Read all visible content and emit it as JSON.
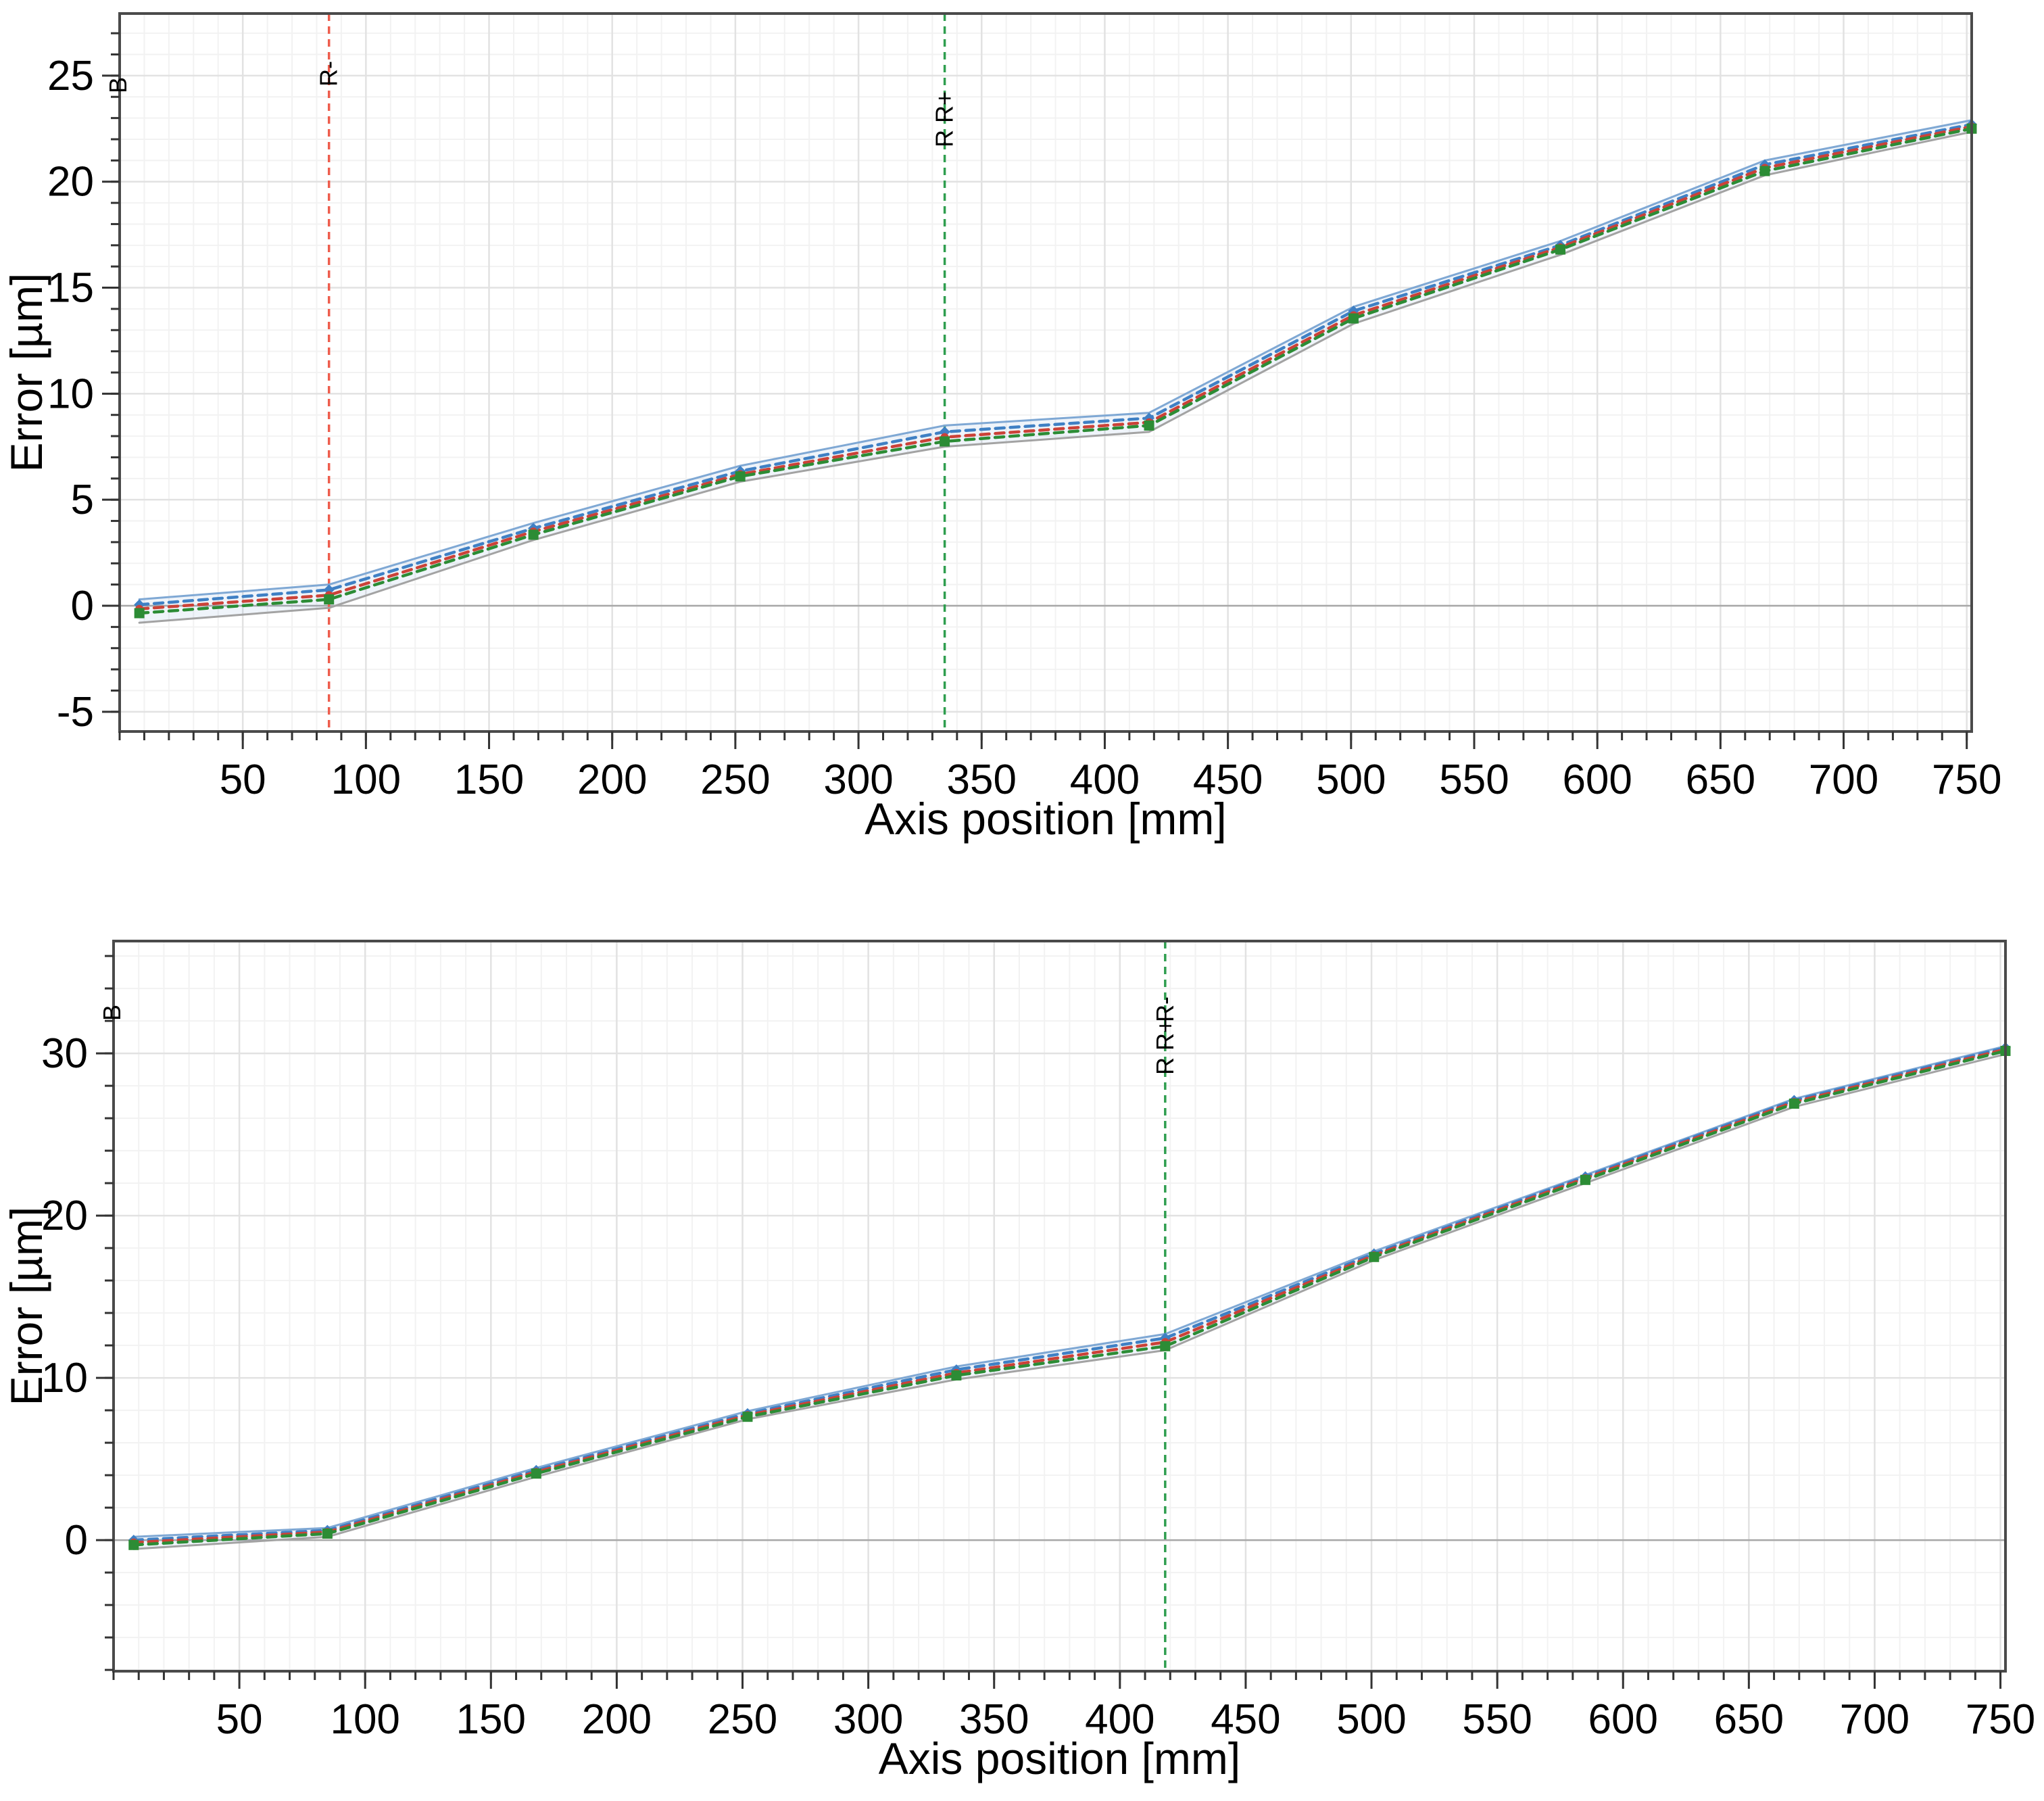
{
  "page": {
    "background": "#ffffff"
  },
  "chart_data": [
    {
      "type": "line",
      "title": "",
      "xlabel": "Axis position [mm]",
      "ylabel": "Error [µm]",
      "xlim": [
        0,
        752
      ],
      "ylim": [
        -5.93,
        27.93
      ],
      "x_major_ticks": [
        50,
        100,
        150,
        200,
        250,
        300,
        350,
        400,
        450,
        500,
        550,
        600,
        650,
        700,
        750
      ],
      "x_minor_step": 10,
      "y_major_ticks": [
        -5,
        0,
        5,
        10,
        15,
        20,
        25
      ],
      "y_minor_step": 1,
      "grid": "on",
      "legend": "none",
      "corner_label": "B",
      "vlines": [
        {
          "x": 85,
          "color": "#ee5d4d",
          "labels": [
            {
              "text": "R-",
              "dy": 108
            }
          ]
        },
        {
          "x": 335,
          "color": "#2f9e4f",
          "labels": [
            {
              "text": "R R+",
              "dy": 198
            }
          ]
        }
      ],
      "x": [
        8,
        85,
        168,
        252,
        335,
        418,
        501,
        585,
        668,
        752
      ],
      "series": [
        {
          "name": "envelope-upper",
          "color": "#7fa8d4",
          "width": 3,
          "dash": null,
          "marker": null,
          "values": [
            0.3,
            1.0,
            3.9,
            6.6,
            8.5,
            9.1,
            14.1,
            17.2,
            21.0,
            22.9
          ]
        },
        {
          "name": "mean-up",
          "color": "#3f80c4",
          "width": 4.5,
          "dash": "13 9",
          "marker": "diamond",
          "values": [
            0.05,
            0.75,
            3.65,
            6.35,
            8.2,
            8.85,
            13.9,
            17.0,
            20.8,
            22.7
          ]
        },
        {
          "name": "mean-bidirectional",
          "color": "#cb4238",
          "width": 4.5,
          "dash": "13 9",
          "marker": "circle",
          "values": [
            -0.15,
            0.5,
            3.5,
            6.2,
            7.95,
            8.65,
            13.7,
            16.9,
            20.65,
            22.6
          ]
        },
        {
          "name": "mean-down",
          "color": "#2c8c35",
          "width": 4.5,
          "dash": "13 9",
          "marker": "square",
          "values": [
            -0.35,
            0.3,
            3.35,
            6.1,
            7.75,
            8.5,
            13.55,
            16.8,
            20.5,
            22.5
          ]
        },
        {
          "name": "envelope-lower",
          "color": "#a3a3a3",
          "width": 3,
          "dash": null,
          "marker": null,
          "values": [
            -0.8,
            -0.1,
            3.1,
            5.85,
            7.5,
            8.2,
            13.3,
            16.55,
            20.3,
            22.35
          ]
        }
      ],
      "band": {
        "fill": "rgba(125,165,215,0.12)"
      }
    },
    {
      "type": "line",
      "title": "",
      "xlabel": "Axis position [mm]",
      "ylabel": "Error [µm]",
      "xlim": [
        0,
        752
      ],
      "ylim": [
        -8.08,
        36.92
      ],
      "x_major_ticks": [
        50,
        100,
        150,
        200,
        250,
        300,
        350,
        400,
        450,
        500,
        550,
        600,
        650,
        700,
        750
      ],
      "x_minor_step": 10,
      "y_major_ticks": [
        0,
        10,
        20,
        30
      ],
      "y_minor_step": 2,
      "grid": "on",
      "legend": "none",
      "corner_label": "B",
      "vlines": [
        {
          "x": 418,
          "color": "#2f9e4f",
          "labels": [
            {
              "text": "R R+",
              "dy": 198
            },
            {
              "text": "R-",
              "dy": 120
            }
          ]
        }
      ],
      "x": [
        8,
        85,
        168,
        252,
        335,
        418,
        501,
        585,
        668,
        752
      ],
      "series": [
        {
          "name": "envelope-upper",
          "color": "#7fa8d4",
          "width": 3,
          "dash": null,
          "marker": null,
          "values": [
            0.2,
            0.75,
            4.45,
            7.95,
            10.7,
            12.7,
            17.8,
            22.5,
            27.2,
            30.45
          ]
        },
        {
          "name": "mean-up",
          "color": "#3f80c4",
          "width": 4.5,
          "dash": "13 9",
          "marker": "diamond",
          "values": [
            0.0,
            0.6,
            4.3,
            7.8,
            10.5,
            12.45,
            17.65,
            22.4,
            27.1,
            30.35
          ]
        },
        {
          "name": "mean-bidirectional",
          "color": "#cb4238",
          "width": 4.5,
          "dash": "13 9",
          "marker": "circle",
          "values": [
            -0.15,
            0.5,
            4.2,
            7.7,
            10.3,
            12.2,
            17.55,
            22.3,
            27.0,
            30.25
          ]
        },
        {
          "name": "mean-down",
          "color": "#2c8c35",
          "width": 4.5,
          "dash": "13 9",
          "marker": "square",
          "values": [
            -0.3,
            0.4,
            4.1,
            7.6,
            10.15,
            11.95,
            17.45,
            22.2,
            26.9,
            30.15
          ]
        },
        {
          "name": "envelope-lower",
          "color": "#a3a3a3",
          "width": 3,
          "dash": null,
          "marker": null,
          "values": [
            -0.55,
            0.2,
            3.9,
            7.45,
            9.9,
            11.7,
            17.25,
            22.0,
            26.7,
            29.95
          ]
        }
      ],
      "band": {
        "fill": "rgba(125,165,215,0.12)"
      }
    }
  ],
  "style_colors": {
    "axis_border": "#4a4a4a",
    "tick": "#333333",
    "grid_minor": "#f2f2f2",
    "grid_major": "#e2e2e2",
    "zero_line": "#a8a8a8",
    "annotation_text": "#1a1a1a"
  }
}
